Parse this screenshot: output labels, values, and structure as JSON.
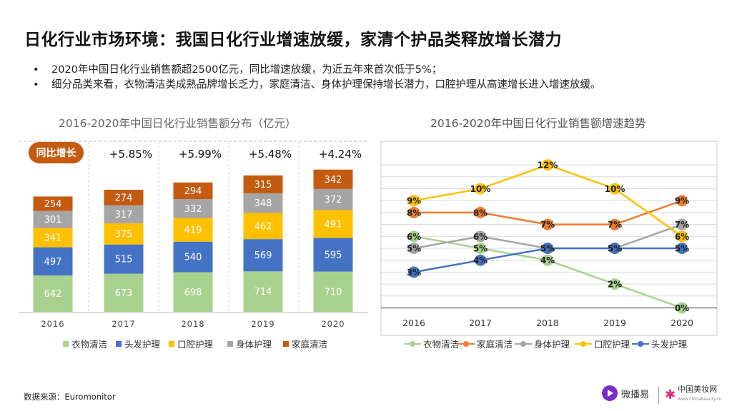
{
  "title": "日化行业市场环境：我国日化行业增速放缓，家清个护品类释放增长潜力",
  "bullets": [
    "2020年中国日化行业销售额超2500亿元，同比增速放缓，为近五年来首次低于5%；",
    "细分品类来看，衣物清洁类成熟品牌增长乏力，家庭清洁、身体护理保持增长潜力，口腔护理从高速增长进入增速放缓。"
  ],
  "bullet_marker": "•",
  "source": "数据来源：Euromonitor",
  "logos": {
    "weibo": "微播易",
    "china_beauty": "中国美妆网",
    "china_beauty_sub": "www.chinabeauty.cn"
  },
  "colors": {
    "衣物清洁": "#a9d18e",
    "头发护理": "#4472c4",
    "口腔护理": "#ffc000",
    "身体护理": "#a5a5a5",
    "家庭清洁": "#c55a11",
    "家庭清洁_line": "#ed7d31",
    "yoy_badge": "#c55a11"
  },
  "chart_data": [
    {
      "type": "bar",
      "stacked": true,
      "title": "2016-2020年中国日化行业销售额分布（亿元）",
      "categories": [
        "2016",
        "2017",
        "2018",
        "2019",
        "2020"
      ],
      "series": [
        {
          "name": "衣物清洁",
          "values": [
            642,
            673,
            698,
            714,
            710
          ]
        },
        {
          "name": "头发护理",
          "values": [
            497,
            515,
            540,
            569,
            595
          ]
        },
        {
          "name": "口腔护理",
          "values": [
            341,
            375,
            419,
            462,
            491
          ]
        },
        {
          "name": "身体护理",
          "values": [
            301,
            317,
            332,
            348,
            372
          ]
        },
        {
          "name": "家庭清洁",
          "values": [
            254,
            274,
            294,
            315,
            342
          ]
        }
      ],
      "yoy_label": "同比增长",
      "yoy": [
        "",
        "+5.85%",
        "+5.99%",
        "+5.48%",
        "+4.24%"
      ],
      "legend": [
        "衣物清洁",
        "头发护理",
        "口腔护理",
        "身体护理",
        "家庭清洁"
      ],
      "legend_position": "bottom",
      "grid": false
    },
    {
      "type": "line",
      "title": "2016-2020年中国日化行业销售额增速趋势",
      "categories": [
        "2016",
        "2017",
        "2018",
        "2019",
        "2020"
      ],
      "unit": "%",
      "ylim": [
        0,
        13
      ],
      "series": [
        {
          "name": "衣物清洁",
          "values": [
            6,
            5,
            4,
            2,
            0
          ]
        },
        {
          "name": "家庭清洁",
          "values": [
            8,
            8,
            7,
            7,
            9
          ]
        },
        {
          "name": "身体护理",
          "values": [
            5,
            6,
            5,
            5,
            7
          ]
        },
        {
          "name": "口腔护理",
          "values": [
            9,
            10,
            12,
            10,
            6
          ]
        },
        {
          "name": "头发护理",
          "values": [
            3,
            4,
            5,
            5,
            5
          ]
        }
      ],
      "legend": [
        "衣物清洁",
        "家庭清洁",
        "身体护理",
        "口腔护理",
        "头发护理"
      ],
      "legend_position": "bottom",
      "grid": true
    }
  ]
}
